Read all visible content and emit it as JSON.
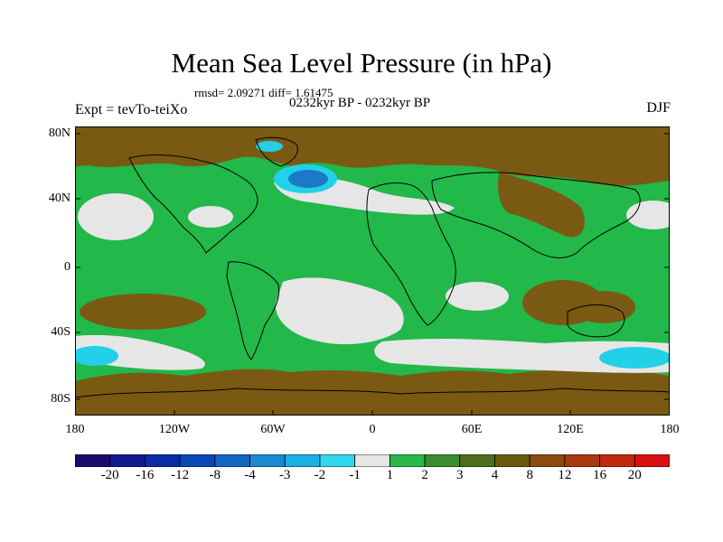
{
  "title": "Mean Sea Level Pressure (in hPa)",
  "stats": "rmsd= 2.09271 diff= 1.61475",
  "period": "0232kyr BP - 0232kyr BP",
  "experiment": "Expt = tevTo-teiXo",
  "season": "DJF",
  "map": {
    "lat_labels": [
      "80N",
      "40N",
      "0",
      "40S",
      "80S"
    ],
    "lon_labels": [
      "180",
      "120W",
      "60W",
      "0",
      "60E",
      "120E",
      "180"
    ],
    "colors": {
      "ocean_green": "#22b84a",
      "land_brown": "#7a5a12",
      "light_grey": "#e6e6e6",
      "blue_low": "#1e78c8",
      "cyan_low": "#22d0e8",
      "coast": "#000000"
    }
  },
  "colorbar": {
    "labels": [
      "-20",
      "-16",
      "-12",
      "-8",
      "-4",
      "-3",
      "-2",
      "-1",
      "1",
      "2",
      "3",
      "4",
      "8",
      "12",
      "16",
      "20"
    ],
    "colors": [
      "#1a0a6e",
      "#101a90",
      "#0a2aa8",
      "#0a48b8",
      "#1166c0",
      "#1a88d2",
      "#1ab0e2",
      "#30d8ec",
      "#e6e6e6",
      "#2ab84a",
      "#3c8c30",
      "#4c6e1c",
      "#6a5a10",
      "#8a4a10",
      "#a83a10",
      "#c02810",
      "#d81010"
    ]
  }
}
